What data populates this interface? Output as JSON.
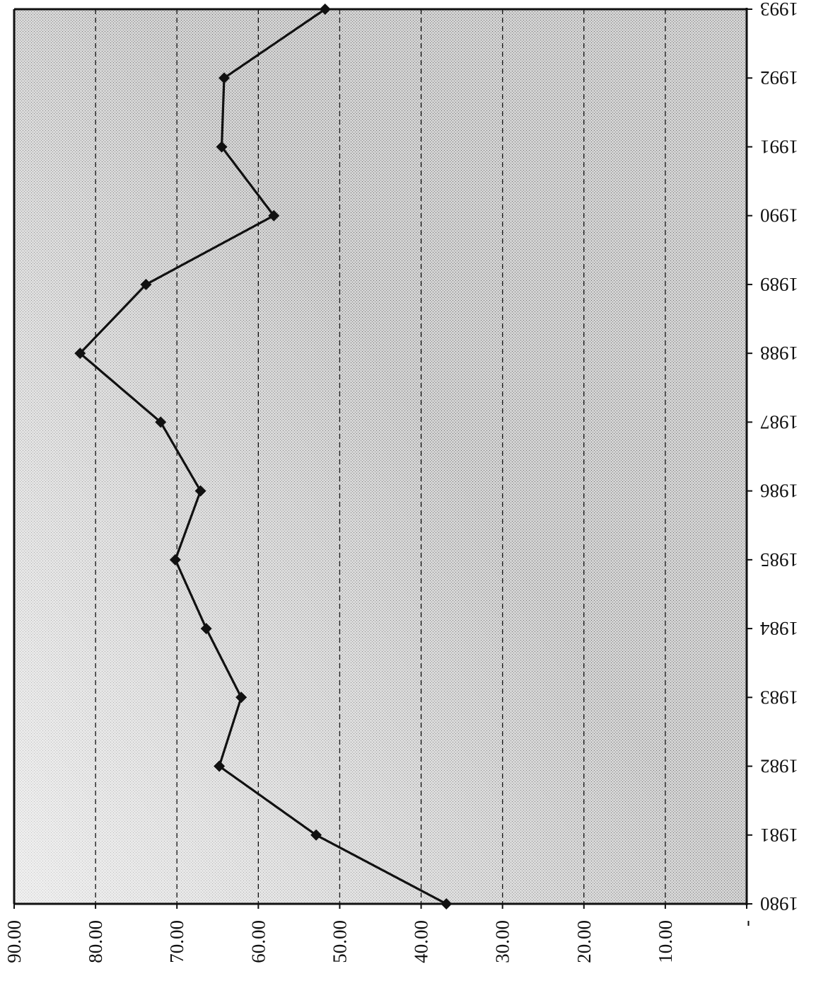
{
  "chart_data": {
    "type": "line",
    "title": "",
    "xlabel": "",
    "ylabel": "",
    "x": [
      "1980",
      "1981",
      "1982",
      "1983",
      "1984",
      "1985",
      "1986",
      "1987",
      "1988",
      "1989",
      "1990",
      "1991",
      "1992",
      "1993"
    ],
    "series": [
      {
        "values": [
          36.9,
          52.9,
          64.8,
          62.1,
          66.4,
          70.2,
          67.1,
          72.0,
          81.9,
          73.8,
          58.1,
          64.5,
          64.2,
          51.8
        ]
      }
    ],
    "ylim": [
      0,
      90
    ],
    "y_ticks": [
      "-",
      "10.00",
      "20.00",
      "30.00",
      "40.00",
      "50.00",
      "60.00",
      "70.00",
      "80.00",
      "90.00"
    ],
    "grid": true,
    "marker": "diamond",
    "line_color": "#111111"
  }
}
